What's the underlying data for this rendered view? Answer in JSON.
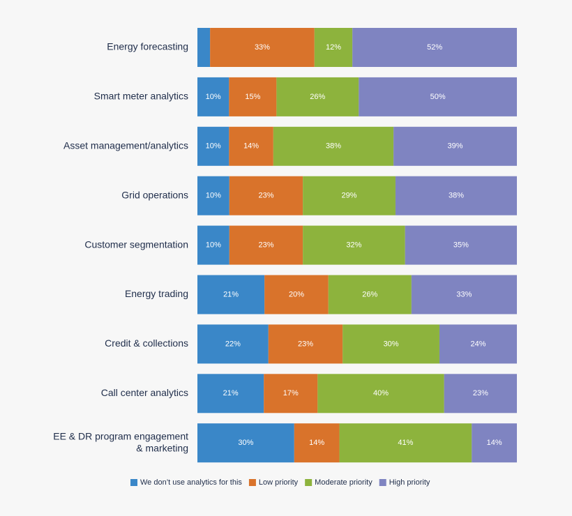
{
  "chart_data": {
    "type": "bar",
    "orientation": "horizontal",
    "stacked": true,
    "normalized": true,
    "grid": false,
    "legend_position": "bottom",
    "categories": [
      [
        "Energy forecasting"
      ],
      [
        "Smart meter analytics"
      ],
      [
        "Asset management/analytics"
      ],
      [
        "Grid operations"
      ],
      [
        "Customer segmentation"
      ],
      [
        "Energy trading"
      ],
      [
        "Credit & collections"
      ],
      [
        "Call center analytics"
      ],
      [
        "EE & DR program engagement",
        "& marketing"
      ]
    ],
    "series": [
      {
        "name": "We don’t use analytics for this",
        "color": "#3a87c8",
        "values": [
          4,
          10,
          10,
          10,
          10,
          21,
          22,
          21,
          30
        ],
        "labels": [
          "",
          "10%",
          "10%",
          "10%",
          "10%",
          "21%",
          "22%",
          "21%",
          "30%"
        ]
      },
      {
        "name": "Low priority",
        "color": "#d9732b",
        "values": [
          33,
          15,
          14,
          23,
          23,
          20,
          23,
          17,
          14
        ],
        "labels": [
          "33%",
          "15%",
          "14%",
          "23%",
          "23%",
          "20%",
          "23%",
          "17%",
          "14%"
        ]
      },
      {
        "name": "Moderate priority",
        "color": "#8db33d",
        "values": [
          12,
          26,
          38,
          29,
          32,
          26,
          30,
          40,
          41
        ],
        "labels": [
          "12%",
          "26%",
          "38%",
          "29%",
          "32%",
          "26%",
          "30%",
          "40%",
          "41%"
        ]
      },
      {
        "name": "High priority",
        "color": "#7f84c1",
        "values": [
          52,
          50,
          39,
          38,
          35,
          33,
          24,
          23,
          14
        ],
        "labels": [
          "52%",
          "50%",
          "39%",
          "38%",
          "35%",
          "33%",
          "24%",
          "23%",
          "14%"
        ]
      }
    ]
  }
}
